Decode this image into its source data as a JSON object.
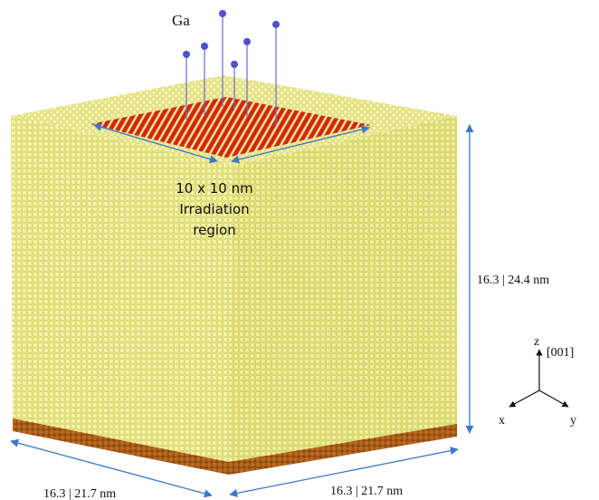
{
  "ion_label": "Ga",
  "irradiation": {
    "line1": "10 x 10 nm",
    "line2": "Irradiation",
    "line3": "region"
  },
  "dimensions": {
    "height": "16.3 | 24.4 nm",
    "width_x": "16.3 | 21.7 nm",
    "width_y": "16.3 | 21.7 nm"
  },
  "axes": {
    "z": "z",
    "direction": "[001]",
    "x": "x",
    "y": "y"
  },
  "colors": {
    "atom": "#f0ef8c",
    "atom_shadow": "#c9c458",
    "irradiated": "#d42514",
    "bottom_layer": "#a75a1b",
    "ion": "#4d4fd6",
    "arrow": "#3a78c8"
  }
}
